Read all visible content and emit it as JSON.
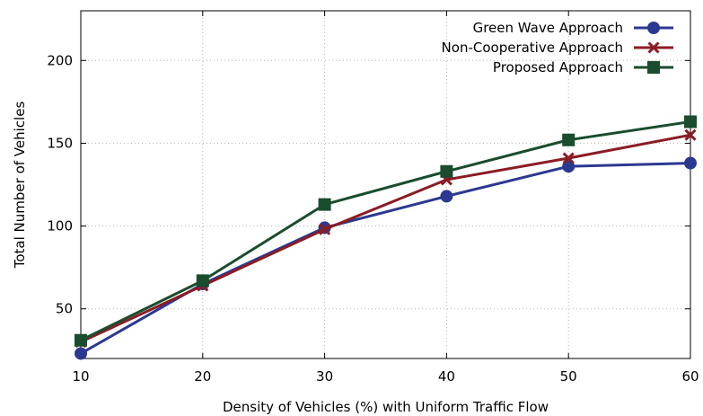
{
  "chart_data": {
    "type": "line",
    "x": [
      10,
      20,
      30,
      40,
      50,
      60
    ],
    "xlabel": "Density of Vehicles (%) with Uniform Traffic Flow",
    "ylabel": "Total Number of Vehicles",
    "xlim": [
      10,
      60
    ],
    "ylim": [
      20,
      230
    ],
    "xticks": [
      10,
      20,
      30,
      40,
      50,
      60
    ],
    "yticks": [
      50,
      100,
      150,
      200
    ],
    "grid": true,
    "legend_position": "top-right",
    "series": [
      {
        "name": "Green Wave Approach",
        "color": "#2b3990",
        "marker": "circle",
        "values": [
          23,
          65,
          99,
          118,
          136,
          138
        ]
      },
      {
        "name": "Non-Cooperative Approach",
        "color": "#8b1c24",
        "marker": "x",
        "values": [
          30,
          64,
          98,
          128,
          141,
          155
        ]
      },
      {
        "name": "Proposed Approach",
        "color": "#1a4d2e",
        "marker": "square",
        "values": [
          31,
          67,
          113,
          133,
          152,
          163
        ]
      }
    ]
  }
}
